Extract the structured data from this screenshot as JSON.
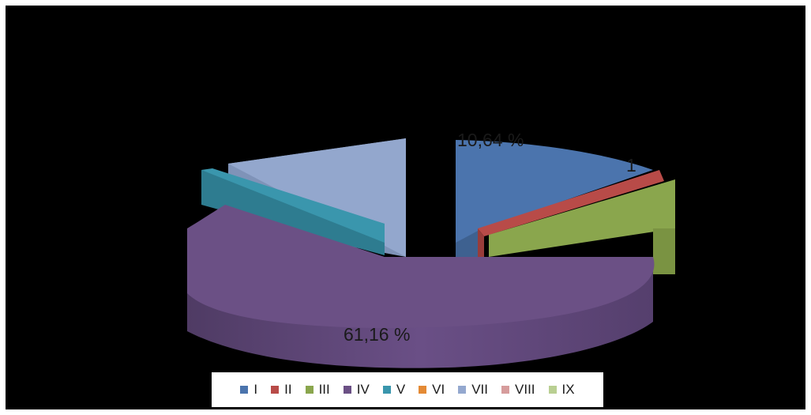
{
  "chart_data": {
    "type": "pie",
    "categories": [
      "I",
      "II",
      "III",
      "IV",
      "V",
      "VI",
      "VII",
      "VIII",
      "IX"
    ],
    "values": [
      10.64,
      1.1,
      7.0,
      61.16,
      3.6,
      0.0,
      16.5,
      0.0,
      0.0
    ],
    "colors": [
      "#4b74ad",
      "#b84b48",
      "#8aa64d",
      "#6b5085",
      "#3a96ad",
      "#e48a35",
      "#94a8cf",
      "#d69c9c",
      "#b9cf92"
    ],
    "data_labels": {
      "I": "10,64 %",
      "II": "1",
      "IV": "61,16 %"
    },
    "legend_position": "bottom",
    "style": "3d-exploded"
  }
}
